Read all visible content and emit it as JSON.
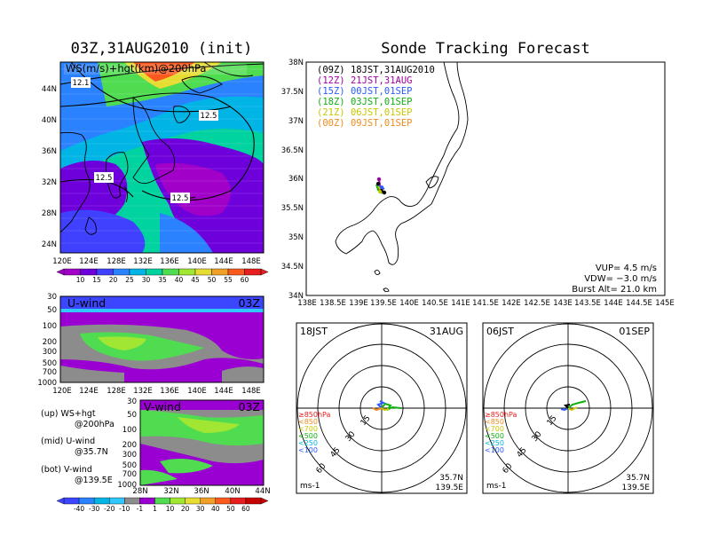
{
  "left": {
    "title": "03Z,31AUG2010 (init)",
    "map_label": "WS(m/s)+hgt(km)@200hPa",
    "contour_labels": [
      "12.1",
      "12.5",
      "12.5",
      "12.5"
    ],
    "lat_ticks": [
      "44N",
      "40N",
      "36N",
      "32N",
      "28N",
      "24N"
    ],
    "lon_ticks": [
      "120E",
      "124E",
      "128E",
      "132E",
      "136E",
      "140E",
      "144E",
      "148E"
    ],
    "ws_colorbar": {
      "labels": [
        "10",
        "15",
        "20",
        "25",
        "30",
        "35",
        "40",
        "45",
        "50",
        "55",
        "60"
      ],
      "colors": [
        "#a000c8",
        "#6e00dc",
        "#4040ff",
        "#2a82ff",
        "#00b4e6",
        "#00d2a0",
        "#50dc50",
        "#a0e632",
        "#e6dc32",
        "#f0a028",
        "#fa5a1e",
        "#e61e1e"
      ]
    },
    "uwind": {
      "title": "U-wind",
      "time": "03Z",
      "p_ticks": [
        "30",
        "50",
        "100",
        "200",
        "300",
        "500",
        "700",
        "1000"
      ],
      "lon_ticks": [
        "120E",
        "124E",
        "128E",
        "132E",
        "136E",
        "140E",
        "144E",
        "148E"
      ]
    },
    "vwind": {
      "title": "V-wind",
      "time": "03Z",
      "p_ticks": [
        "30",
        "50",
        "100",
        "200",
        "300",
        "500",
        "700",
        "1000"
      ],
      "lat_ticks": [
        "28N",
        "32N",
        "36N",
        "40N",
        "44N"
      ]
    },
    "wind_colorbar": {
      "labels": [
        "-40",
        "-30",
        "-20",
        "-10",
        "-1",
        "1",
        "10",
        "20",
        "30",
        "40",
        "50",
        "60"
      ],
      "colors": [
        "#3c46ff",
        "#2a82ff",
        "#00b4e6",
        "#32c8ff",
        "#8c8c8c",
        "#9b00d2",
        "#50dc50",
        "#a0e632",
        "#e6dc32",
        "#f0a028",
        "#fa5a1e",
        "#e61e1e",
        "#c80000"
      ]
    },
    "notes": [
      {
        "k": "(up)",
        "v": "WS+hgt",
        "v2": "@200hPa"
      },
      {
        "k": "(mid)",
        "v": "U-wind",
        "v2": "@35.7N"
      },
      {
        "k": "(bot)",
        "v": "V-wind",
        "v2": "@139.5E"
      }
    ]
  },
  "right": {
    "title": "Sonde Tracking Forecast",
    "lat_ticks": [
      "38N",
      "37.5N",
      "37N",
      "36.5N",
      "36N",
      "35.5N",
      "35N",
      "34.5N",
      "34N"
    ],
    "lon_ticks": [
      "138E",
      "138.5E",
      "139E",
      "139.5E",
      "140E",
      "140.5E",
      "141E",
      "141.5E",
      "142E",
      "142.5E",
      "143E",
      "143.5E",
      "144E",
      "144.5E",
      "145E"
    ],
    "legend": [
      {
        "z": "(09Z)",
        "jst": "18JST,31AUG2010",
        "color": "#000000"
      },
      {
        "z": "(12Z)",
        "jst": "21JST,31AUG",
        "color": "#a000a0"
      },
      {
        "z": "(15Z)",
        "jst": "00JST,01SEP",
        "color": "#2a5aff"
      },
      {
        "z": "(18Z)",
        "jst": "03JST,01SEP",
        "color": "#10b010"
      },
      {
        "z": "(21Z)",
        "jst": "06JST,01SEP",
        "color": "#c8c800"
      },
      {
        "z": "(00Z)",
        "jst": "09JST,01SEP",
        "color": "#f08c1e"
      }
    ],
    "params": {
      "vup": "VUP= 4.5 m/s",
      "vdw": "VDW= −3.0 m/s",
      "burst": "Burst Alt= 21.0 km"
    }
  },
  "hodographs": [
    {
      "left_label": "18JST",
      "right_label": "31AUG",
      "ring_labels": [
        "15",
        "30",
        "45",
        "60"
      ],
      "levels": [
        {
          "t": "≥850hPa",
          "c": "#e61e1e"
        },
        {
          "t": "<850",
          "c": "#f0a028"
        },
        {
          "t": "<700",
          "c": "#c8c800"
        },
        {
          "t": "<500",
          "c": "#10b010"
        },
        {
          "t": "<250",
          "c": "#00b4e6"
        },
        {
          "t": "<100",
          "c": "#2a5aff"
        }
      ],
      "unit": "ms-1",
      "lat": "35.7N",
      "lon": "139.5E"
    },
    {
      "left_label": "06JST",
      "right_label": "01SEP",
      "ring_labels": [
        "15",
        "30",
        "45",
        "60"
      ],
      "levels": [
        {
          "t": "≥850hPa",
          "c": "#e61e1e"
        },
        {
          "t": "<850",
          "c": "#f0a028"
        },
        {
          "t": "<700",
          "c": "#c8c800"
        },
        {
          "t": "<500",
          "c": "#10b010"
        },
        {
          "t": "<250",
          "c": "#00b4e6"
        },
        {
          "t": "<100",
          "c": "#2a5aff"
        }
      ],
      "unit": "ms-1",
      "lat": "35.7N",
      "lon": "139.5E"
    }
  ],
  "chart_data": [
    {
      "type": "heatmap",
      "title": "03Z,31AUG2010 (init)",
      "xlabel": "",
      "ylabel": "",
      "xlim": [
        120,
        150
      ],
      "ylim": [
        22,
        47
      ]
    },
    {
      "type": "heatmap",
      "title": "U-wind",
      "xlim": [
        120,
        150
      ],
      "ylim": [
        1000,
        30
      ]
    },
    {
      "type": "heatmap",
      "title": "V-wind",
      "xlim": [
        28,
        44
      ],
      "ylim": [
        1000,
        30
      ]
    },
    {
      "type": "line",
      "title": "Sonde Tracking Forecast",
      "xlim": [
        138,
        145
      ],
      "ylim": [
        34,
        38
      ]
    }
  ]
}
